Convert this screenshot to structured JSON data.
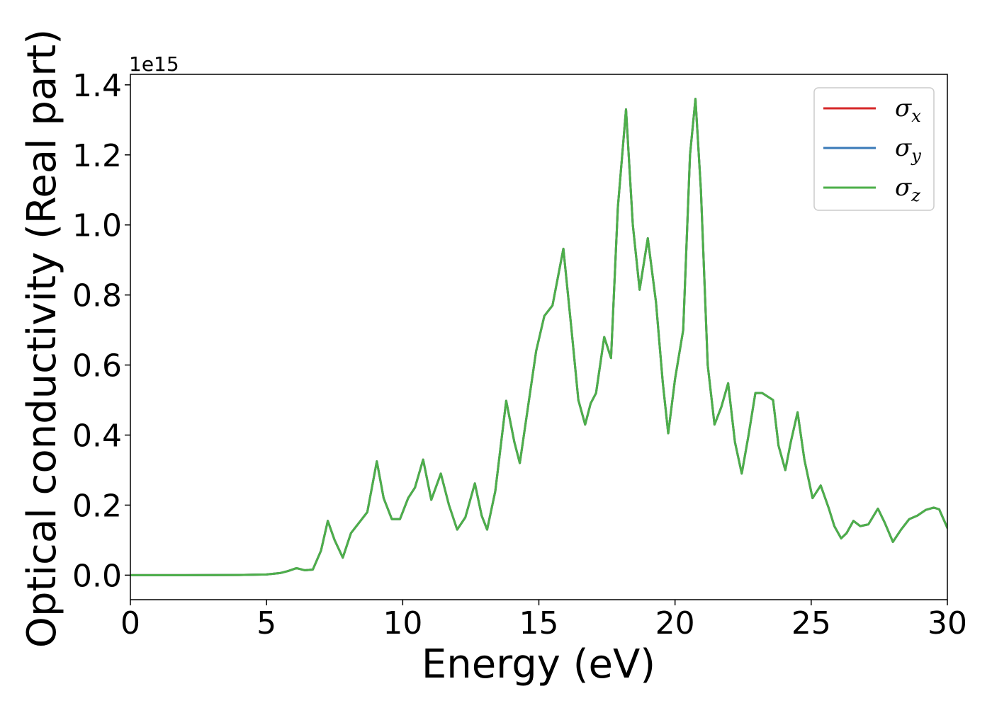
{
  "chart_data": {
    "type": "line",
    "xlabel": "Energy (eV)",
    "ylabel": "Optical conductivity (Real part)",
    "offset_text": "1e15",
    "xlim": [
      0,
      30
    ],
    "ylim": [
      -0.07,
      1.43
    ],
    "xticks": [
      0,
      5,
      10,
      15,
      20,
      25,
      30
    ],
    "yticks": [
      0.0,
      0.2,
      0.4,
      0.6,
      0.8,
      1.0,
      1.2,
      1.4
    ],
    "ytick_labels": [
      "0.0",
      "0.2",
      "0.4",
      "0.6",
      "0.8",
      "1.0",
      "1.2",
      "1.4"
    ],
    "grid": false,
    "legend_position": "top-right",
    "x": [
      0,
      2,
      4,
      5,
      5.5,
      5.8,
      6.1,
      6.4,
      6.7,
      7.0,
      7.25,
      7.5,
      7.8,
      8.1,
      8.4,
      8.7,
      9.05,
      9.3,
      9.6,
      9.9,
      10.2,
      10.45,
      10.75,
      11.05,
      11.4,
      11.7,
      12.0,
      12.3,
      12.65,
      12.9,
      13.1,
      13.4,
      13.8,
      14.1,
      14.3,
      14.6,
      14.9,
      15.2,
      15.5,
      15.9,
      16.2,
      16.45,
      16.7,
      16.9,
      17.1,
      17.4,
      17.65,
      17.9,
      18.2,
      18.45,
      18.7,
      19.0,
      19.3,
      19.55,
      19.75,
      20.0,
      20.3,
      20.55,
      20.75,
      20.95,
      21.2,
      21.45,
      21.7,
      21.95,
      22.2,
      22.45,
      22.7,
      22.95,
      23.2,
      23.6,
      23.8,
      24.05,
      24.25,
      24.5,
      24.75,
      25.05,
      25.35,
      25.65,
      25.85,
      26.1,
      26.3,
      26.55,
      26.8,
      27.1,
      27.45,
      27.7,
      28.0,
      28.3,
      28.6,
      28.9,
      29.2,
      29.5,
      29.7,
      30.0
    ],
    "series": [
      {
        "name": "σx",
        "name_base": "σ",
        "name_sub": "x",
        "color": "#d62728",
        "values": [
          0,
          0,
          0.0005,
          0.002,
          0.006,
          0.012,
          0.02,
          0.014,
          0.016,
          0.07,
          0.155,
          0.1,
          0.05,
          0.12,
          0.15,
          0.18,
          0.325,
          0.22,
          0.16,
          0.16,
          0.22,
          0.25,
          0.33,
          0.215,
          0.29,
          0.2,
          0.13,
          0.165,
          0.262,
          0.17,
          0.13,
          0.24,
          0.498,
          0.38,
          0.32,
          0.48,
          0.64,
          0.74,
          0.77,
          0.932,
          0.7,
          0.5,
          0.43,
          0.49,
          0.52,
          0.68,
          0.62,
          1.05,
          1.33,
          1.0,
          0.815,
          0.962,
          0.78,
          0.55,
          0.405,
          0.56,
          0.7,
          1.2,
          1.36,
          1.1,
          0.6,
          0.43,
          0.48,
          0.548,
          0.38,
          0.29,
          0.4,
          0.52,
          0.52,
          0.5,
          0.37,
          0.3,
          0.38,
          0.465,
          0.33,
          0.22,
          0.256,
          0.19,
          0.14,
          0.105,
          0.12,
          0.155,
          0.14,
          0.145,
          0.19,
          0.15,
          0.095,
          0.13,
          0.16,
          0.17,
          0.186,
          0.193,
          0.188,
          0.135
        ]
      },
      {
        "name": "σy",
        "name_base": "σ",
        "name_sub": "y",
        "color": "#3a7ab8",
        "values": [
          0,
          0,
          0.0005,
          0.002,
          0.006,
          0.012,
          0.02,
          0.014,
          0.016,
          0.07,
          0.155,
          0.1,
          0.05,
          0.12,
          0.15,
          0.18,
          0.325,
          0.22,
          0.16,
          0.16,
          0.22,
          0.25,
          0.33,
          0.215,
          0.29,
          0.2,
          0.13,
          0.165,
          0.262,
          0.17,
          0.13,
          0.24,
          0.498,
          0.38,
          0.32,
          0.48,
          0.64,
          0.74,
          0.77,
          0.932,
          0.7,
          0.5,
          0.43,
          0.49,
          0.52,
          0.68,
          0.62,
          1.05,
          1.33,
          1.0,
          0.815,
          0.962,
          0.78,
          0.55,
          0.405,
          0.56,
          0.7,
          1.2,
          1.36,
          1.1,
          0.6,
          0.43,
          0.48,
          0.548,
          0.38,
          0.29,
          0.4,
          0.52,
          0.52,
          0.5,
          0.37,
          0.3,
          0.38,
          0.465,
          0.33,
          0.22,
          0.256,
          0.19,
          0.14,
          0.105,
          0.12,
          0.155,
          0.14,
          0.145,
          0.19,
          0.15,
          0.095,
          0.13,
          0.16,
          0.17,
          0.186,
          0.193,
          0.188,
          0.135
        ]
      },
      {
        "name": "σz",
        "name_base": "σ",
        "name_sub": "z",
        "color": "#4daf4a",
        "values": [
          0,
          0,
          0.0005,
          0.002,
          0.006,
          0.012,
          0.02,
          0.014,
          0.016,
          0.07,
          0.155,
          0.1,
          0.05,
          0.12,
          0.15,
          0.18,
          0.325,
          0.22,
          0.16,
          0.16,
          0.22,
          0.25,
          0.33,
          0.215,
          0.29,
          0.2,
          0.13,
          0.165,
          0.262,
          0.17,
          0.13,
          0.24,
          0.498,
          0.38,
          0.32,
          0.48,
          0.64,
          0.74,
          0.77,
          0.932,
          0.7,
          0.5,
          0.43,
          0.49,
          0.52,
          0.68,
          0.62,
          1.05,
          1.33,
          1.0,
          0.815,
          0.962,
          0.78,
          0.55,
          0.405,
          0.56,
          0.7,
          1.2,
          1.36,
          1.1,
          0.6,
          0.43,
          0.48,
          0.548,
          0.38,
          0.29,
          0.4,
          0.52,
          0.52,
          0.5,
          0.37,
          0.3,
          0.38,
          0.465,
          0.33,
          0.22,
          0.256,
          0.19,
          0.14,
          0.105,
          0.12,
          0.155,
          0.14,
          0.145,
          0.19,
          0.15,
          0.095,
          0.13,
          0.16,
          0.17,
          0.186,
          0.193,
          0.188,
          0.135
        ]
      }
    ]
  }
}
